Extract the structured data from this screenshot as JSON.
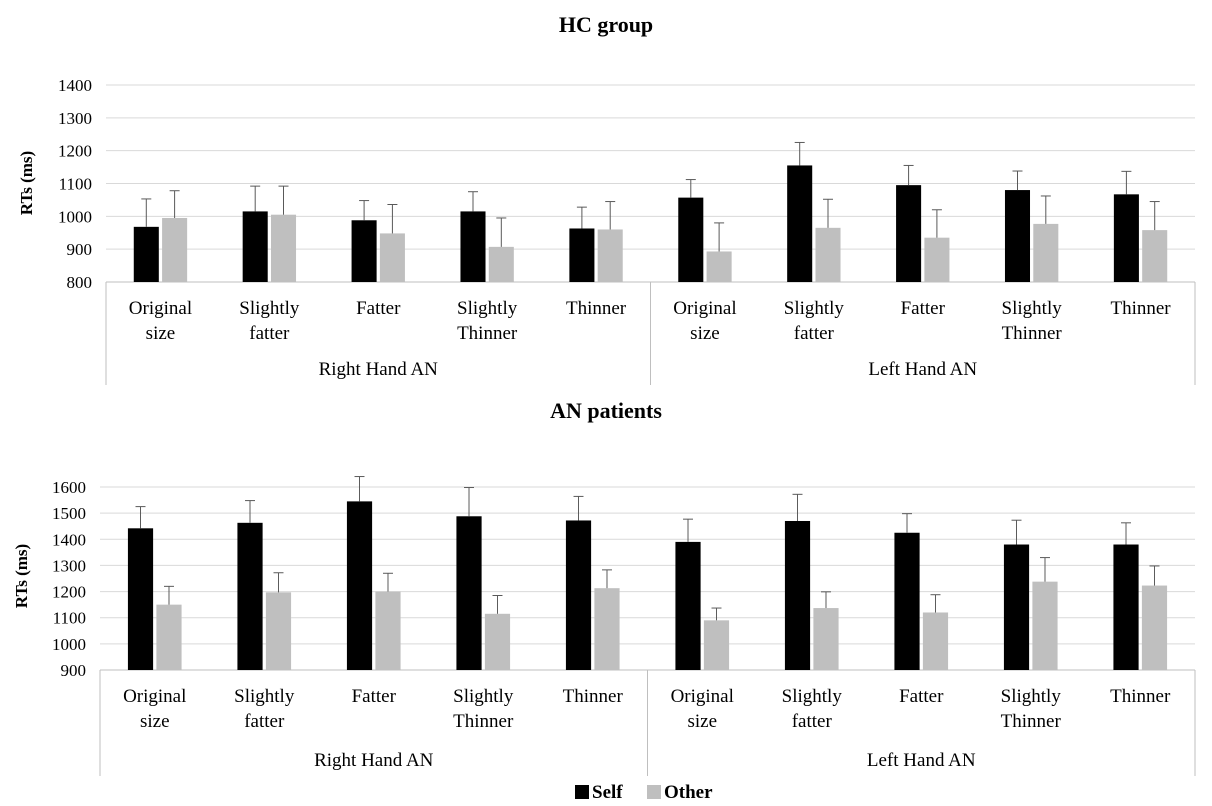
{
  "chart_data": [
    {
      "type": "bar",
      "title": "HC group",
      "xlabel": "",
      "ylabel": "RTs (ms)",
      "ylim": [
        800,
        1400
      ],
      "yticks": [
        800,
        900,
        1000,
        1100,
        1200,
        1300,
        1400
      ],
      "grid": true,
      "groups": [
        {
          "label": "Right Hand AN",
          "categories": [
            [
              "Original",
              "size"
            ],
            [
              "Slightly",
              "fatter"
            ],
            [
              "Fatter"
            ],
            [
              "Slightly",
              "Thinner"
            ],
            [
              "Thinner"
            ]
          ]
        },
        {
          "label": "Left Hand AN",
          "categories": [
            [
              "Original",
              "size"
            ],
            [
              "Slightly",
              "fatter"
            ],
            [
              "Fatter"
            ],
            [
              "Slightly",
              "Thinner"
            ],
            [
              "Thinner"
            ]
          ]
        }
      ],
      "series": [
        {
          "name": "Self",
          "color": "#000000",
          "values": [
            968,
            1015,
            988,
            1015,
            963,
            1057,
            1155,
            1095,
            1080,
            1067
          ],
          "error": [
            85,
            77,
            60,
            60,
            65,
            55,
            70,
            60,
            58,
            70
          ]
        },
        {
          "name": "Other",
          "color": "#bfbfbf",
          "values": [
            995,
            1005,
            948,
            907,
            960,
            893,
            965,
            935,
            977,
            958
          ],
          "error": [
            83,
            87,
            88,
            88,
            85,
            87,
            87,
            85,
            85,
            87
          ]
        }
      ]
    },
    {
      "type": "bar",
      "title": "AN patients",
      "xlabel": "",
      "ylabel": "RTs (ms)",
      "ylim": [
        900,
        1600
      ],
      "yticks": [
        900,
        1000,
        1100,
        1200,
        1300,
        1400,
        1500,
        1600
      ],
      "grid": true,
      "groups": [
        {
          "label": "Right Hand AN",
          "categories": [
            [
              "Original",
              "size"
            ],
            [
              "Slightly",
              "fatter"
            ],
            [
              "Fatter"
            ],
            [
              "Slightly",
              "Thinner"
            ],
            [
              "Thinner"
            ]
          ]
        },
        {
          "label": "Left Hand AN",
          "categories": [
            [
              "Original",
              "size"
            ],
            [
              "Slightly",
              "fatter"
            ],
            [
              "Fatter"
            ],
            [
              "Slightly",
              "Thinner"
            ],
            [
              "Thinner"
            ]
          ]
        }
      ],
      "series": [
        {
          "name": "Self",
          "color": "#000000",
          "values": [
            1442,
            1463,
            1545,
            1488,
            1472,
            1390,
            1470,
            1425,
            1380,
            1380
          ],
          "error": [
            83,
            85,
            95,
            110,
            92,
            87,
            102,
            73,
            93,
            83
          ]
        },
        {
          "name": "Other",
          "color": "#bfbfbf",
          "values": [
            1150,
            1197,
            1200,
            1115,
            1213,
            1090,
            1137,
            1120,
            1238,
            1223
          ],
          "error": [
            70,
            75,
            70,
            70,
            70,
            47,
            62,
            68,
            92,
            75
          ]
        }
      ]
    }
  ],
  "legend": {
    "placement": "bottom-center",
    "items": [
      {
        "label": "Self",
        "color": "#000000"
      },
      {
        "label": "Other",
        "color": "#bfbfbf"
      }
    ]
  }
}
